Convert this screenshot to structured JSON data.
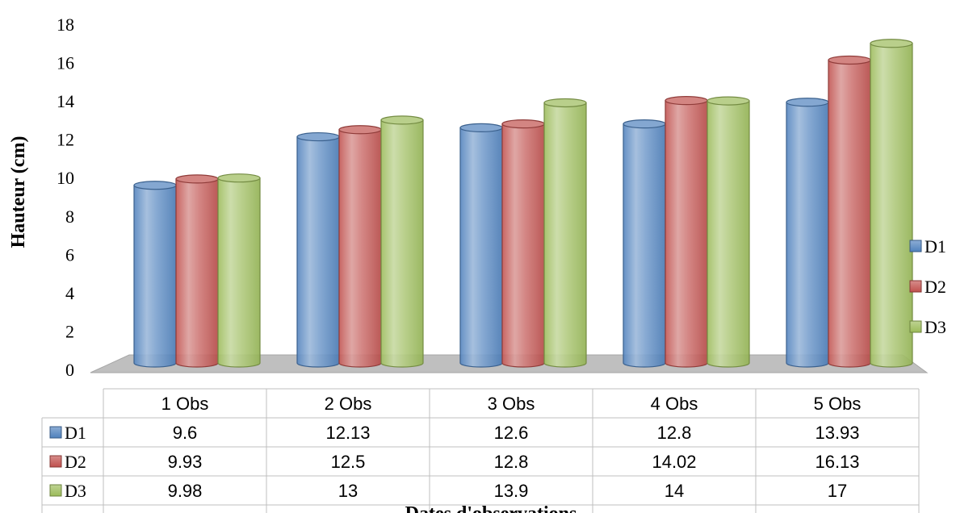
{
  "chart_data": {
    "type": "bar",
    "title": "",
    "xlabel": "Dates d'observations",
    "ylabel": "Hauteur (cm)",
    "ylim": [
      0,
      18
    ],
    "yticks": [
      0,
      2,
      4,
      6,
      8,
      10,
      12,
      14,
      16,
      18
    ],
    "categories": [
      "1 Obs",
      "2 Obs",
      "3 Obs",
      "4 Obs",
      "5 Obs"
    ],
    "series": [
      {
        "name": "D1",
        "color": "#4F81BD",
        "values": [
          9.6,
          12.13,
          12.6,
          12.8,
          13.93
        ]
      },
      {
        "name": "D2",
        "color": "#C0504D",
        "values": [
          9.93,
          12.5,
          12.8,
          14.02,
          16.13
        ]
      },
      {
        "name": "D3",
        "color": "#9BBB59",
        "values": [
          9.98,
          13,
          13.9,
          14,
          17
        ]
      }
    ],
    "table_values": [
      [
        "9.6",
        "12.13",
        "12.6",
        "12.8",
        "13.93"
      ],
      [
        "9.93",
        "12.5",
        "12.8",
        "14.02",
        "16.13"
      ],
      [
        "9.98",
        "13",
        "13.9",
        "14",
        "17"
      ]
    ],
    "legend_position": "right",
    "grid": false,
    "data_table": true
  }
}
